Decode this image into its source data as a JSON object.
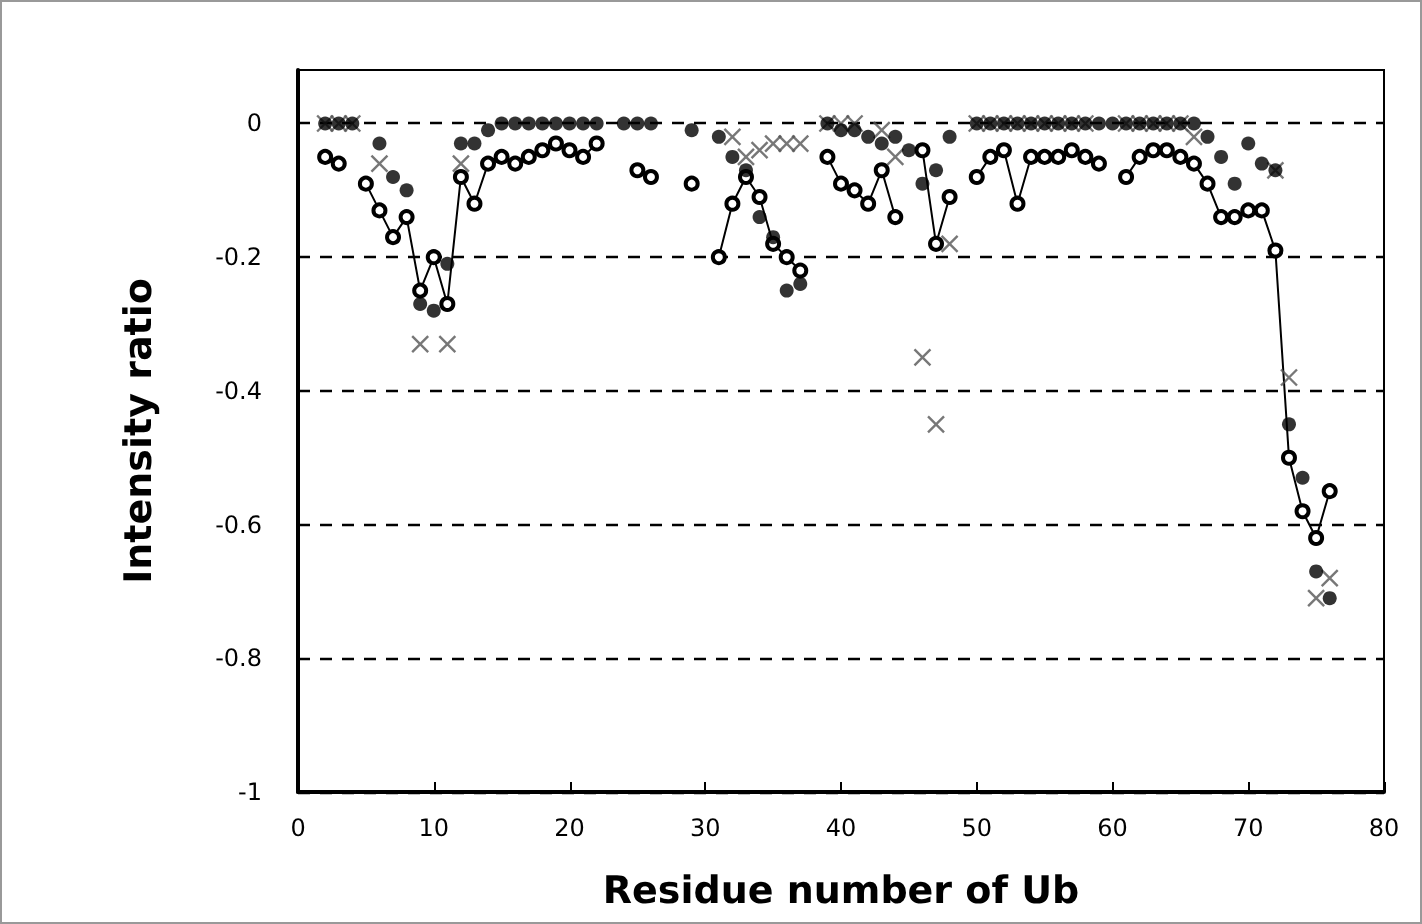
{
  "chart_data": {
    "type": "scatter",
    "xlabel": "Residue number of Ub",
    "ylabel": "Intensity ratio",
    "x": [
      2,
      3,
      4,
      5,
      6,
      7,
      8,
      9,
      10,
      11,
      12,
      13,
      14,
      15,
      16,
      17,
      18,
      19,
      20,
      21,
      22,
      23,
      24,
      25,
      26,
      27,
      28,
      29,
      30,
      31,
      32,
      33,
      34,
      35,
      36,
      37,
      38,
      39,
      40,
      41,
      42,
      43,
      44,
      45,
      46,
      47,
      48,
      49,
      50,
      51,
      52,
      53,
      54,
      55,
      56,
      57,
      58,
      59,
      60,
      61,
      62,
      63,
      64,
      65,
      66,
      67,
      68,
      69,
      70,
      71,
      72,
      73,
      74,
      75,
      76
    ],
    "series": [
      {
        "marker": "circle",
        "color": "#000000",
        "values": [
          0,
          0,
          0,
          null,
          -0.03,
          -0.08,
          -0.1,
          -0.27,
          -0.28,
          -0.21,
          -0.03,
          -0.03,
          -0.01,
          0,
          0,
          0,
          0,
          0,
          0,
          0,
          0,
          null,
          0,
          0,
          0,
          null,
          null,
          -0.01,
          null,
          -0.02,
          -0.05,
          -0.07,
          -0.14,
          -0.17,
          -0.25,
          -0.24,
          null,
          0,
          -0.01,
          -0.01,
          -0.02,
          -0.03,
          -0.02,
          -0.04,
          -0.09,
          -0.07,
          -0.02,
          null,
          0,
          0,
          0,
          0,
          0,
          0,
          0,
          0,
          0,
          0,
          0,
          0,
          0,
          0,
          0,
          0,
          0,
          -0.02,
          -0.05,
          -0.09,
          -0.03,
          -0.06,
          -0.07,
          -0.45,
          -0.53,
          -0.67,
          -0.71
        ]
      },
      {
        "type": "line",
        "marker": "circle",
        "color": "#000000",
        "values": [
          -0.05,
          -0.06,
          null,
          -0.09,
          -0.13,
          -0.17,
          -0.14,
          -0.25,
          -0.2,
          -0.27,
          -0.08,
          -0.12,
          -0.06,
          -0.05,
          -0.06,
          -0.05,
          -0.04,
          -0.03,
          -0.04,
          -0.05,
          -0.03,
          null,
          null,
          -0.07,
          -0.08,
          null,
          null,
          -0.09,
          null,
          -0.2,
          -0.12,
          -0.08,
          -0.11,
          -0.18,
          -0.2,
          -0.22,
          null,
          -0.05,
          -0.09,
          -0.1,
          -0.12,
          -0.07,
          -0.14,
          null,
          -0.04,
          -0.18,
          -0.11,
          null,
          -0.08,
          -0.05,
          -0.04,
          -0.12,
          -0.05,
          -0.05,
          -0.05,
          -0.04,
          -0.05,
          -0.06,
          null,
          -0.08,
          -0.05,
          -0.04,
          -0.04,
          -0.05,
          -0.06,
          -0.09,
          -0.14,
          -0.14,
          -0.13,
          -0.13,
          -0.19,
          -0.5,
          -0.58,
          -0.62,
          -0.55
        ]
      },
      {
        "marker": "cross",
        "color": "#555555",
        "values": [
          0,
          0,
          0,
          null,
          -0.06,
          null,
          null,
          -0.33,
          null,
          -0.33,
          -0.06,
          null,
          null,
          null,
          null,
          null,
          null,
          null,
          null,
          null,
          null,
          null,
          null,
          null,
          null,
          null,
          null,
          null,
          null,
          null,
          -0.02,
          -0.05,
          -0.04,
          -0.03,
          -0.03,
          -0.03,
          null,
          0,
          0,
          0,
          null,
          -0.01,
          -0.05,
          null,
          -0.35,
          -0.45,
          -0.18,
          null,
          0,
          0,
          0,
          0,
          0,
          0,
          0,
          0,
          0,
          null,
          null,
          0,
          0,
          0,
          0,
          0,
          -0.02,
          null,
          null,
          null,
          null,
          null,
          -0.07,
          -0.38,
          null,
          -0.71,
          -0.68
        ]
      }
    ],
    "xlim": [
      0,
      80
    ],
    "xticks": [
      0,
      10,
      20,
      30,
      40,
      50,
      60,
      70,
      80
    ],
    "ylim": [
      -1,
      0.08
    ],
    "yticks": [
      -1,
      -0.8,
      -0.6,
      -0.4,
      -0.2,
      0
    ],
    "grid": "y",
    "line_style": "solid"
  }
}
